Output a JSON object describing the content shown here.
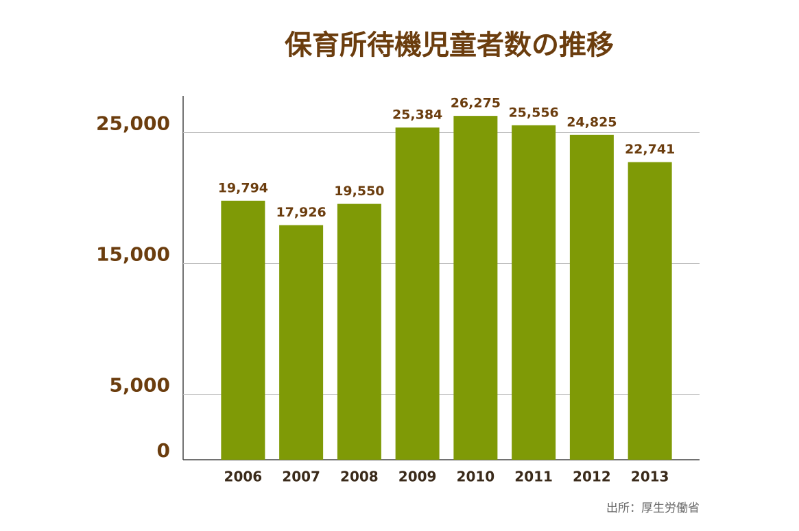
{
  "chart_data": {
    "type": "bar",
    "title": "保育所待機児童者数の推移",
    "source": "出所：厚生労働省",
    "categories": [
      "2006",
      "2007",
      "2008",
      "2009",
      "2010",
      "2011",
      "2012",
      "2013"
    ],
    "values": [
      19794,
      17926,
      19550,
      25384,
      26275,
      25556,
      24825,
      22741
    ],
    "value_labels": [
      "19,794",
      "17,926",
      "19,550",
      "25,384",
      "26,275",
      "25,556",
      "24,825",
      "22,741"
    ],
    "color": "#7f9a06",
    "ylim": [
      0,
      27800
    ],
    "yticks": [
      0,
      {
        "value": 5000,
        "label": "5,000"
      },
      {
        "value": 15000,
        "label": "15,000"
      },
      {
        "value": 25000,
        "label": "25,000"
      }
    ],
    "grid": true
  }
}
